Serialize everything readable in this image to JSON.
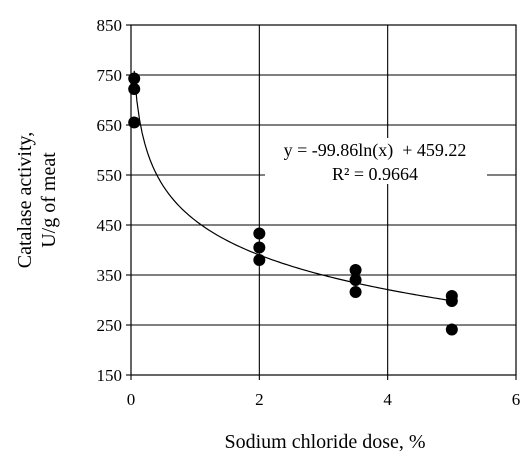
{
  "chart_data": {
    "type": "scatter",
    "title": "",
    "xlabel": "Sodium chloride dose, %",
    "ylabel_lines": [
      "Catalase activity,",
      "U/g of meat"
    ],
    "xlim": [
      0,
      6
    ],
    "ylim": [
      150,
      850
    ],
    "xticks": [
      0,
      2,
      4,
      6
    ],
    "yticks": [
      150,
      250,
      350,
      450,
      550,
      650,
      750,
      850
    ],
    "grid": true,
    "points": [
      {
        "x": 0.05,
        "y": 743
      },
      {
        "x": 0.05,
        "y": 722
      },
      {
        "x": 0.05,
        "y": 655
      },
      {
        "x": 2.0,
        "y": 433
      },
      {
        "x": 2.0,
        "y": 405
      },
      {
        "x": 2.0,
        "y": 380
      },
      {
        "x": 3.5,
        "y": 360
      },
      {
        "x": 3.5,
        "y": 340
      },
      {
        "x": 3.5,
        "y": 316
      },
      {
        "x": 5.0,
        "y": 308
      },
      {
        "x": 5.0,
        "y": 298
      },
      {
        "x": 5.0,
        "y": 241
      }
    ],
    "trendline": {
      "type": "logarithmic",
      "a": -99.86,
      "b": 459.22,
      "x_range": [
        0.05,
        5.0
      ],
      "equation": "y = -99.86ln(x)  + 459.22",
      "r2": "R² = 0.9664"
    },
    "marker_color": "#000000"
  }
}
